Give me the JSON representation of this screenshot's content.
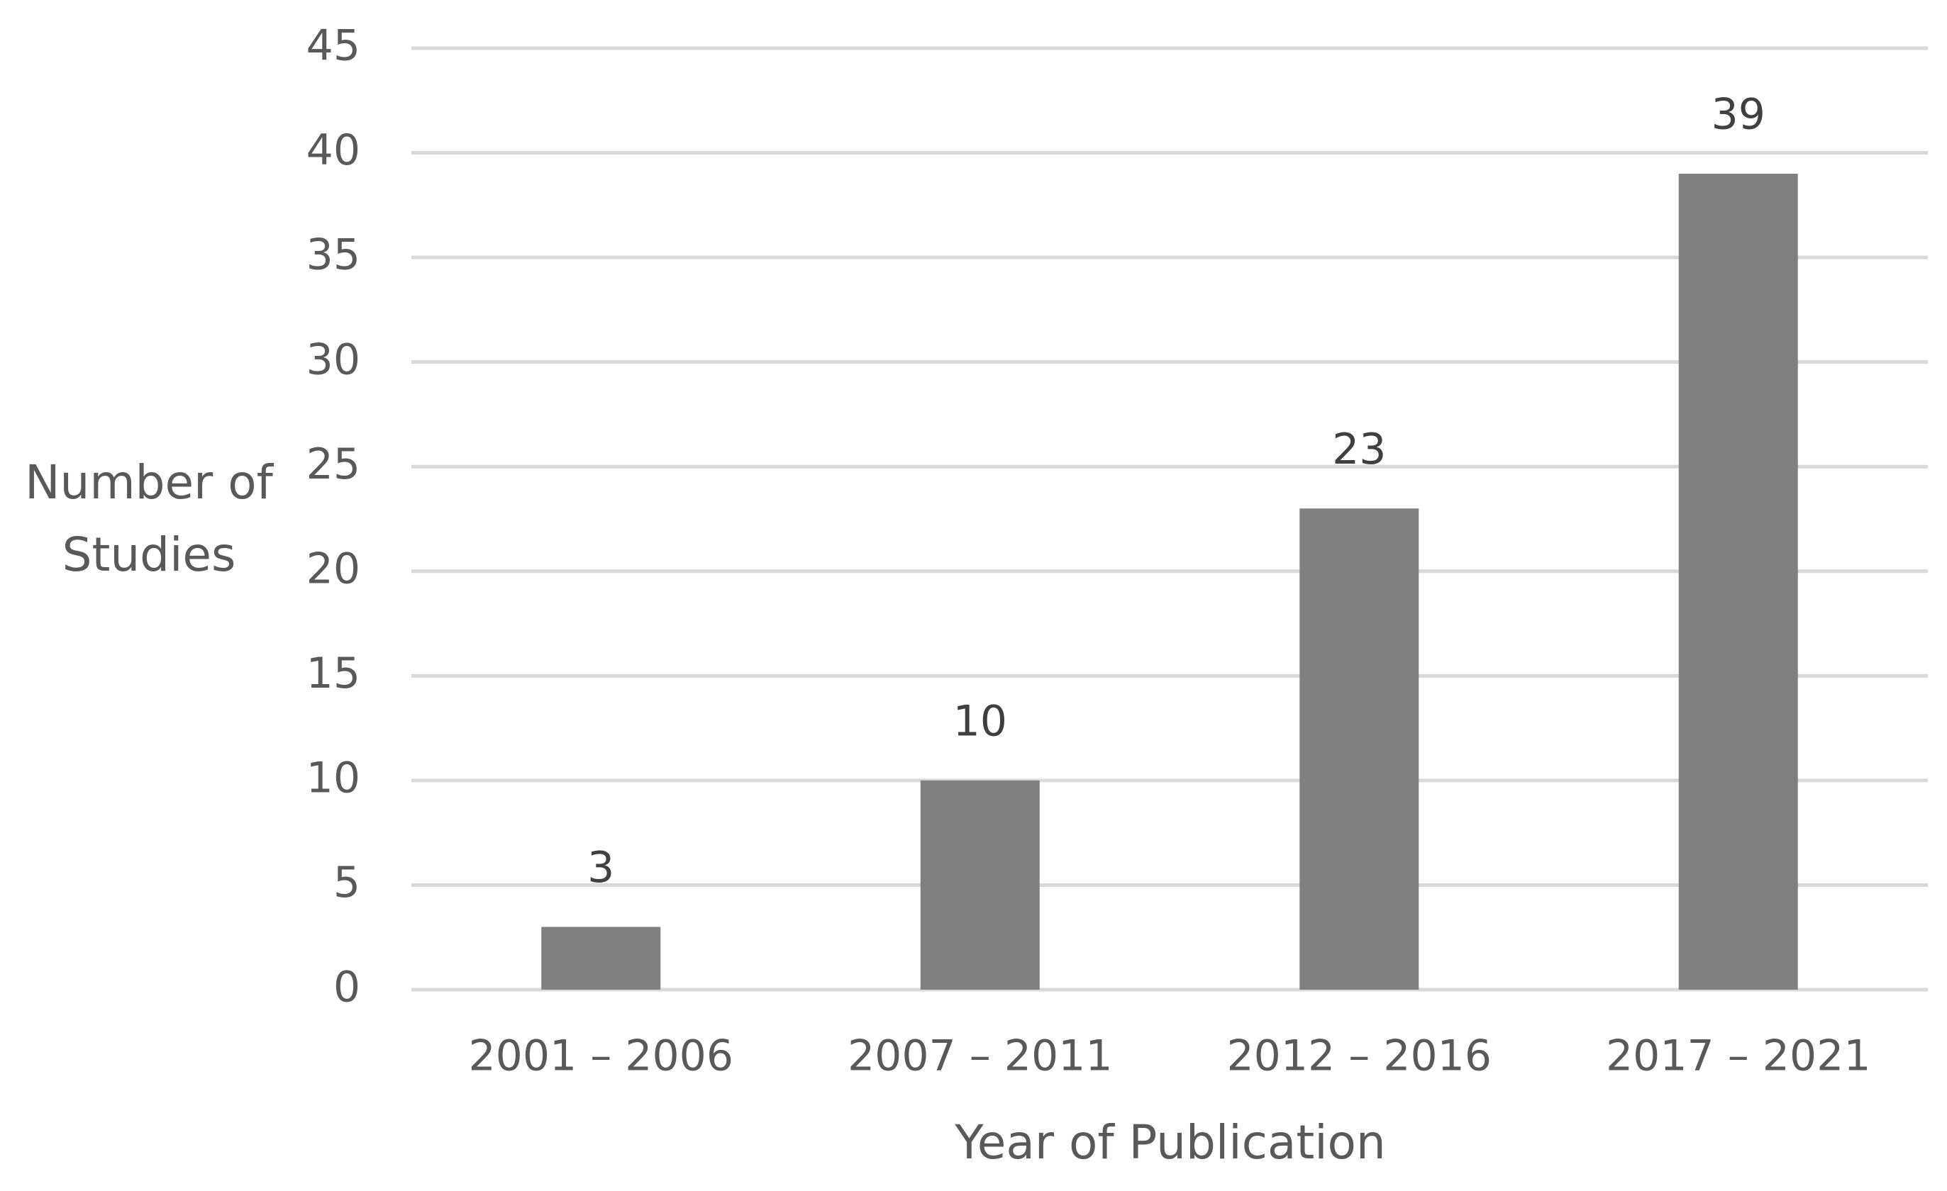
{
  "chart_data": {
    "type": "bar",
    "x_label": "Year of Publication",
    "y_label": "Number of Studies",
    "categories": [
      "2001 – 2006",
      "2007 – 2011",
      "2012 – 2016",
      "2017 – 2021"
    ],
    "values": [
      3,
      10,
      23,
      39
    ],
    "color": "#808080",
    "ylim": [
      0,
      45
    ],
    "yticks": [
      0,
      5,
      10,
      15,
      20,
      25,
      30,
      35,
      40,
      45
    ],
    "grid": true,
    "data_labels": true
  }
}
